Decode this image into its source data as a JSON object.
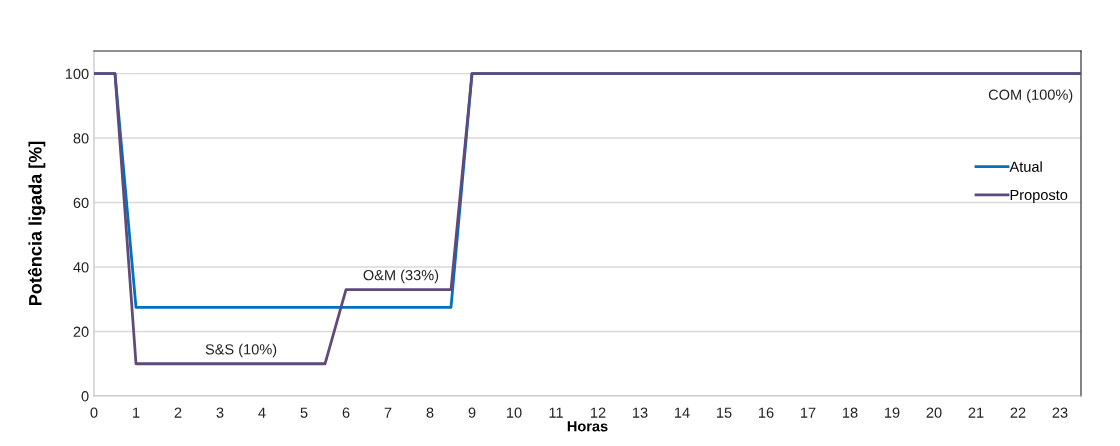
{
  "chart_data": {
    "type": "line",
    "xlabel": "Horas",
    "ylabel": "Potência ligada [%]",
    "xlim": [
      0,
      23.5
    ],
    "xticks": [
      0,
      1,
      2,
      3,
      4,
      5,
      6,
      7,
      8,
      9,
      10,
      11,
      12,
      13,
      14,
      15,
      16,
      17,
      18,
      19,
      20,
      21,
      22,
      23
    ],
    "ylim": [
      0,
      107
    ],
    "yticks": [
      0,
      20,
      40,
      60,
      80,
      100
    ],
    "grid": "y",
    "legend": "right",
    "marker": "none",
    "line_style": "solid",
    "series": [
      {
        "name": "Atual",
        "color": "#0070c0",
        "x": [
          0,
          0.5,
          1,
          8.5,
          9,
          23.5
        ],
        "values": [
          100,
          100,
          27.5,
          27.5,
          100,
          100
        ]
      },
      {
        "name": "Proposto",
        "color": "#604a7b",
        "x": [
          0,
          0.5,
          1,
          5.5,
          6,
          8.5,
          9,
          23.5
        ],
        "values": [
          100,
          100,
          10,
          10,
          33,
          33,
          100,
          100
        ]
      }
    ],
    "annotations": [
      "S&S (10%)",
      "O&M (33%)",
      "COM (100%)"
    ]
  }
}
